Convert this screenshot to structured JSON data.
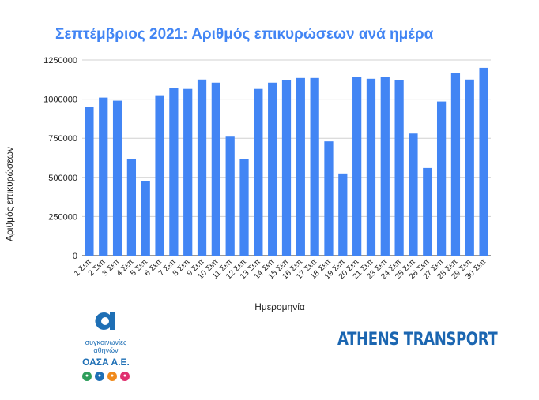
{
  "chart_data": {
    "type": "bar",
    "title": "Σεπτέμβριος 2021: Αριθμός επικυρώσεων ανά ημέρα",
    "xlabel": "Ημερομηνία",
    "ylabel": "Αριθμός επικυρώσεων",
    "ylim": [
      0,
      1250000
    ],
    "yticks": [
      "0",
      "250000",
      "500000",
      "750000",
      "1000000",
      "1250000"
    ],
    "grid": true,
    "bar_color": "#4285f4",
    "categories": [
      "1 Σεπ",
      "2 Σεπ",
      "3 Σεπ",
      "4 Σεπ",
      "5 Σεπ",
      "6 Σεπ",
      "7 Σεπ",
      "8 Σεπ",
      "9 Σεπ",
      "10 Σεπ",
      "11 Σεπ",
      "12 Σεπ",
      "13 Σεπ",
      "14 Σεπ",
      "15 Σεπ",
      "16 Σεπ",
      "17 Σεπ",
      "18 Σεπ",
      "19 Σεπ",
      "20 Σεπ",
      "21 Σεπ",
      "23 Σεπ",
      "24 Σεπ",
      "25 Σεπ",
      "26 Σεπ",
      "27 Σεπ",
      "28 Σεπ",
      "29 Σεπ",
      "30 Σεπ"
    ],
    "values": [
      950000,
      1010000,
      990000,
      620000,
      475000,
      1020000,
      1070000,
      1065000,
      1125000,
      1105000,
      760000,
      615000,
      1065000,
      1105000,
      1120000,
      1135000,
      1135000,
      730000,
      525000,
      1140000,
      1130000,
      1140000,
      1120000,
      780000,
      560000,
      985000,
      1165000,
      1125000,
      1200000
    ]
  },
  "logo": {
    "line1": "συγκοινωνίες",
    "line2": "αθηνών",
    "line3": "ΟΑΣΑ Α.Ε.",
    "icons": [
      {
        "name": "bus-icon",
        "color": "#2e9e5b"
      },
      {
        "name": "trolley-icon",
        "color": "#1e6fb5"
      },
      {
        "name": "metro-icon",
        "color": "#f08a1c"
      },
      {
        "name": "tram-icon",
        "color": "#e0306f"
      }
    ]
  },
  "brand": "ATHENS TRANSPORT"
}
